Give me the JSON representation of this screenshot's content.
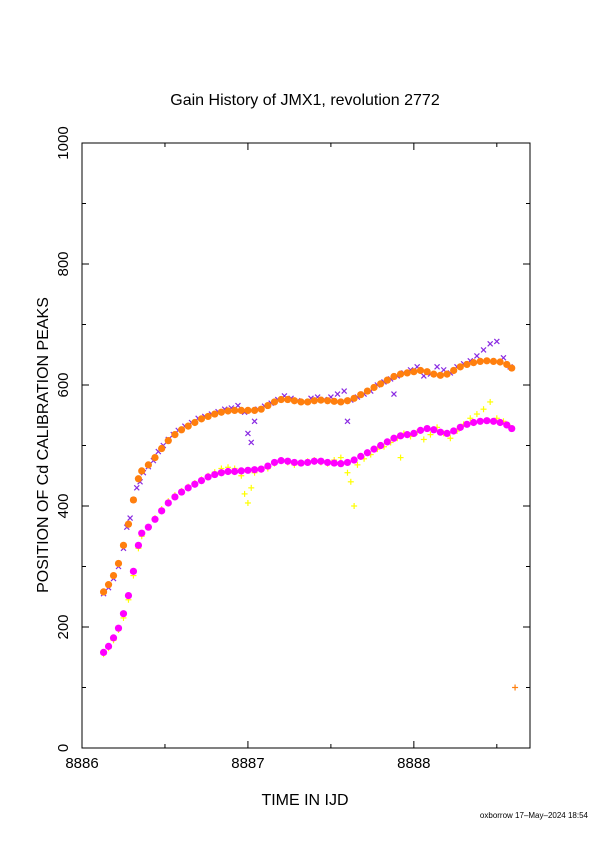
{
  "chart_data": {
    "type": "scatter",
    "title": "Gain History of JMX1, revolution 2772",
    "xlabel": "TIME IN IJD",
    "ylabel": "POSITION OF Cd CALIBRATION PEAKS",
    "xlim": [
      8886.0,
      8888.7
    ],
    "ylim": [
      0,
      1000
    ],
    "x_ticks": [
      8886,
      8887,
      8888
    ],
    "y_ticks": [
      0,
      200,
      400,
      600,
      800,
      1000
    ],
    "grid": false,
    "legend": "none",
    "series": [
      {
        "marker": "x",
        "color": "#8a2be2",
        "values": [
          [
            8886.13,
            255
          ],
          [
            8886.16,
            265
          ],
          [
            8886.19,
            280
          ],
          [
            8886.22,
            300
          ],
          [
            8886.25,
            330
          ],
          [
            8886.27,
            365
          ],
          [
            8886.29,
            380
          ],
          [
            8886.31,
            410
          ],
          [
            8886.33,
            430
          ],
          [
            8886.35,
            440
          ],
          [
            8886.37,
            455
          ],
          [
            8886.4,
            465
          ],
          [
            8886.43,
            475
          ],
          [
            8886.46,
            490
          ],
          [
            8886.49,
            500
          ],
          [
            8886.52,
            510
          ],
          [
            8886.55,
            518
          ],
          [
            8886.58,
            525
          ],
          [
            8886.62,
            532
          ],
          [
            8886.66,
            538
          ],
          [
            8886.7,
            545
          ],
          [
            8886.74,
            548
          ],
          [
            8886.78,
            552
          ],
          [
            8886.82,
            556
          ],
          [
            8886.86,
            560
          ],
          [
            8886.9,
            562
          ],
          [
            8886.94,
            566
          ],
          [
            8886.98,
            555
          ],
          [
            8887.0,
            520
          ],
          [
            8887.02,
            505
          ],
          [
            8887.04,
            540
          ],
          [
            8887.06,
            560
          ],
          [
            8887.1,
            565
          ],
          [
            8887.14,
            570
          ],
          [
            8887.18,
            576
          ],
          [
            8887.22,
            582
          ],
          [
            8887.26,
            578
          ],
          [
            8887.3,
            574
          ],
          [
            8887.34,
            572
          ],
          [
            8887.38,
            578
          ],
          [
            8887.42,
            580
          ],
          [
            8887.46,
            576
          ],
          [
            8887.5,
            580
          ],
          [
            8887.54,
            585
          ],
          [
            8887.58,
            590
          ],
          [
            8887.6,
            540
          ],
          [
            8887.62,
            575
          ],
          [
            8887.66,
            580
          ],
          [
            8887.7,
            585
          ],
          [
            8887.74,
            590
          ],
          [
            8887.78,
            600
          ],
          [
            8887.82,
            605
          ],
          [
            8887.86,
            610
          ],
          [
            8887.88,
            585
          ],
          [
            8887.9,
            615
          ],
          [
            8887.94,
            620
          ],
          [
            8887.98,
            625
          ],
          [
            8888.02,
            630
          ],
          [
            8888.06,
            615
          ],
          [
            8888.1,
            618
          ],
          [
            8888.14,
            630
          ],
          [
            8888.18,
            625
          ],
          [
            8888.22,
            620
          ],
          [
            8888.26,
            630
          ],
          [
            8888.3,
            635
          ],
          [
            8888.34,
            640
          ],
          [
            8888.38,
            648
          ],
          [
            8888.42,
            658
          ],
          [
            8888.46,
            668
          ],
          [
            8888.5,
            672
          ],
          [
            8888.54,
            645
          ],
          [
            8888.58,
            630
          ]
        ]
      },
      {
        "marker": "o",
        "color": "#ff7f0e",
        "values": [
          [
            8886.13,
            258
          ],
          [
            8886.16,
            270
          ],
          [
            8886.19,
            285
          ],
          [
            8886.22,
            305
          ],
          [
            8886.25,
            335
          ],
          [
            8886.28,
            370
          ],
          [
            8886.31,
            410
          ],
          [
            8886.34,
            445
          ],
          [
            8886.36,
            458
          ],
          [
            8886.4,
            468
          ],
          [
            8886.44,
            480
          ],
          [
            8886.48,
            495
          ],
          [
            8886.52,
            508
          ],
          [
            8886.56,
            518
          ],
          [
            8886.6,
            526
          ],
          [
            8886.64,
            532
          ],
          [
            8886.68,
            538
          ],
          [
            8886.72,
            544
          ],
          [
            8886.76,
            548
          ],
          [
            8886.8,
            552
          ],
          [
            8886.84,
            555
          ],
          [
            8886.88,
            557
          ],
          [
            8886.92,
            558
          ],
          [
            8886.96,
            558
          ],
          [
            8887.0,
            558
          ],
          [
            8887.04,
            558
          ],
          [
            8887.08,
            560
          ],
          [
            8887.12,
            566
          ],
          [
            8887.16,
            572
          ],
          [
            8887.2,
            576
          ],
          [
            8887.24,
            576
          ],
          [
            8887.28,
            574
          ],
          [
            8887.32,
            572
          ],
          [
            8887.36,
            572
          ],
          [
            8887.4,
            574
          ],
          [
            8887.44,
            575
          ],
          [
            8887.48,
            574
          ],
          [
            8887.52,
            573
          ],
          [
            8887.56,
            572
          ],
          [
            8887.6,
            574
          ],
          [
            8887.64,
            578
          ],
          [
            8887.68,
            584
          ],
          [
            8887.72,
            590
          ],
          [
            8887.76,
            596
          ],
          [
            8887.8,
            602
          ],
          [
            8887.84,
            608
          ],
          [
            8887.88,
            614
          ],
          [
            8887.92,
            618
          ],
          [
            8887.96,
            620
          ],
          [
            8888.0,
            622
          ],
          [
            8888.04,
            624
          ],
          [
            8888.08,
            622
          ],
          [
            8888.12,
            618
          ],
          [
            8888.16,
            616
          ],
          [
            8888.2,
            618
          ],
          [
            8888.24,
            624
          ],
          [
            8888.28,
            630
          ],
          [
            8888.32,
            634
          ],
          [
            8888.36,
            637
          ],
          [
            8888.4,
            639
          ],
          [
            8888.44,
            640
          ],
          [
            8888.48,
            639
          ],
          [
            8888.52,
            638
          ],
          [
            8888.56,
            634
          ],
          [
            8888.59,
            628
          ]
        ]
      },
      {
        "marker": "+",
        "color": "#ffff00",
        "values": [
          [
            8886.13,
            155
          ],
          [
            8886.16,
            165
          ],
          [
            8886.19,
            178
          ],
          [
            8886.22,
            195
          ],
          [
            8886.25,
            215
          ],
          [
            8886.28,
            245
          ],
          [
            8886.31,
            285
          ],
          [
            8886.34,
            330
          ],
          [
            8886.36,
            350
          ],
          [
            8886.4,
            365
          ],
          [
            8886.44,
            380
          ],
          [
            8886.48,
            395
          ],
          [
            8886.52,
            408
          ],
          [
            8886.56,
            418
          ],
          [
            8886.6,
            425
          ],
          [
            8886.64,
            432
          ],
          [
            8886.68,
            438
          ],
          [
            8886.72,
            444
          ],
          [
            8886.76,
            450
          ],
          [
            8886.8,
            456
          ],
          [
            8886.84,
            462
          ],
          [
            8886.88,
            464
          ],
          [
            8886.92,
            462
          ],
          [
            8886.96,
            450
          ],
          [
            8886.98,
            420
          ],
          [
            8887.0,
            405
          ],
          [
            8887.02,
            430
          ],
          [
            8887.04,
            455
          ],
          [
            8887.08,
            460
          ],
          [
            8887.12,
            462
          ],
          [
            8887.16,
            470
          ],
          [
            8887.2,
            476
          ],
          [
            8887.24,
            472
          ],
          [
            8887.28,
            468
          ],
          [
            8887.32,
            472
          ],
          [
            8887.36,
            474
          ],
          [
            8887.4,
            476
          ],
          [
            8887.44,
            472
          ],
          [
            8887.48,
            470
          ],
          [
            8887.52,
            476
          ],
          [
            8887.56,
            480
          ],
          [
            8887.6,
            455
          ],
          [
            8887.62,
            440
          ],
          [
            8887.64,
            400
          ],
          [
            8887.66,
            468
          ],
          [
            8887.7,
            478
          ],
          [
            8887.74,
            485
          ],
          [
            8887.78,
            494
          ],
          [
            8887.82,
            498
          ],
          [
            8887.86,
            505
          ],
          [
            8887.9,
            512
          ],
          [
            8887.92,
            480
          ],
          [
            8887.94,
            520
          ],
          [
            8887.98,
            515
          ],
          [
            8888.02,
            522
          ],
          [
            8888.06,
            510
          ],
          [
            8888.1,
            518
          ],
          [
            8888.14,
            530
          ],
          [
            8888.18,
            520
          ],
          [
            8888.22,
            512
          ],
          [
            8888.26,
            524
          ],
          [
            8888.3,
            535
          ],
          [
            8888.34,
            545
          ],
          [
            8888.38,
            552
          ],
          [
            8888.42,
            560
          ],
          [
            8888.46,
            572
          ],
          [
            8888.5,
            545
          ],
          [
            8888.54,
            540
          ],
          [
            8888.58,
            530
          ]
        ]
      },
      {
        "marker": "o",
        "color": "#ff00ff",
        "values": [
          [
            8886.13,
            158
          ],
          [
            8886.16,
            168
          ],
          [
            8886.19,
            182
          ],
          [
            8886.22,
            198
          ],
          [
            8886.25,
            222
          ],
          [
            8886.28,
            252
          ],
          [
            8886.31,
            292
          ],
          [
            8886.34,
            335
          ],
          [
            8886.36,
            355
          ],
          [
            8886.4,
            365
          ],
          [
            8886.44,
            378
          ],
          [
            8886.48,
            392
          ],
          [
            8886.52,
            405
          ],
          [
            8886.56,
            415
          ],
          [
            8886.6,
            423
          ],
          [
            8886.64,
            430
          ],
          [
            8886.68,
            436
          ],
          [
            8886.72,
            442
          ],
          [
            8886.76,
            448
          ],
          [
            8886.8,
            452
          ],
          [
            8886.84,
            455
          ],
          [
            8886.88,
            457
          ],
          [
            8886.92,
            457
          ],
          [
            8886.96,
            458
          ],
          [
            8887.0,
            459
          ],
          [
            8887.04,
            460
          ],
          [
            8887.08,
            461
          ],
          [
            8887.12,
            466
          ],
          [
            8887.16,
            472
          ],
          [
            8887.2,
            475
          ],
          [
            8887.24,
            474
          ],
          [
            8887.28,
            472
          ],
          [
            8887.32,
            471
          ],
          [
            8887.36,
            472
          ],
          [
            8887.4,
            474
          ],
          [
            8887.44,
            474
          ],
          [
            8887.48,
            472
          ],
          [
            8887.52,
            471
          ],
          [
            8887.56,
            470
          ],
          [
            8887.6,
            472
          ],
          [
            8887.64,
            476
          ],
          [
            8887.68,
            482
          ],
          [
            8887.72,
            488
          ],
          [
            8887.76,
            494
          ],
          [
            8887.8,
            500
          ],
          [
            8887.84,
            506
          ],
          [
            8887.88,
            512
          ],
          [
            8887.92,
            516
          ],
          [
            8887.96,
            518
          ],
          [
            8888.0,
            520
          ],
          [
            8888.04,
            525
          ],
          [
            8888.08,
            528
          ],
          [
            8888.12,
            526
          ],
          [
            8888.16,
            522
          ],
          [
            8888.2,
            520
          ],
          [
            8888.24,
            524
          ],
          [
            8888.28,
            530
          ],
          [
            8888.32,
            535
          ],
          [
            8888.36,
            538
          ],
          [
            8888.4,
            540
          ],
          [
            8888.44,
            541
          ],
          [
            8888.48,
            540
          ],
          [
            8888.52,
            538
          ],
          [
            8888.56,
            534
          ],
          [
            8888.59,
            528
          ]
        ]
      },
      {
        "marker": "+",
        "color": "#ff7f0e",
        "values": [
          [
            8888.61,
            100
          ]
        ]
      }
    ],
    "footer": "oxborrow 17–May–2024 18:54"
  }
}
